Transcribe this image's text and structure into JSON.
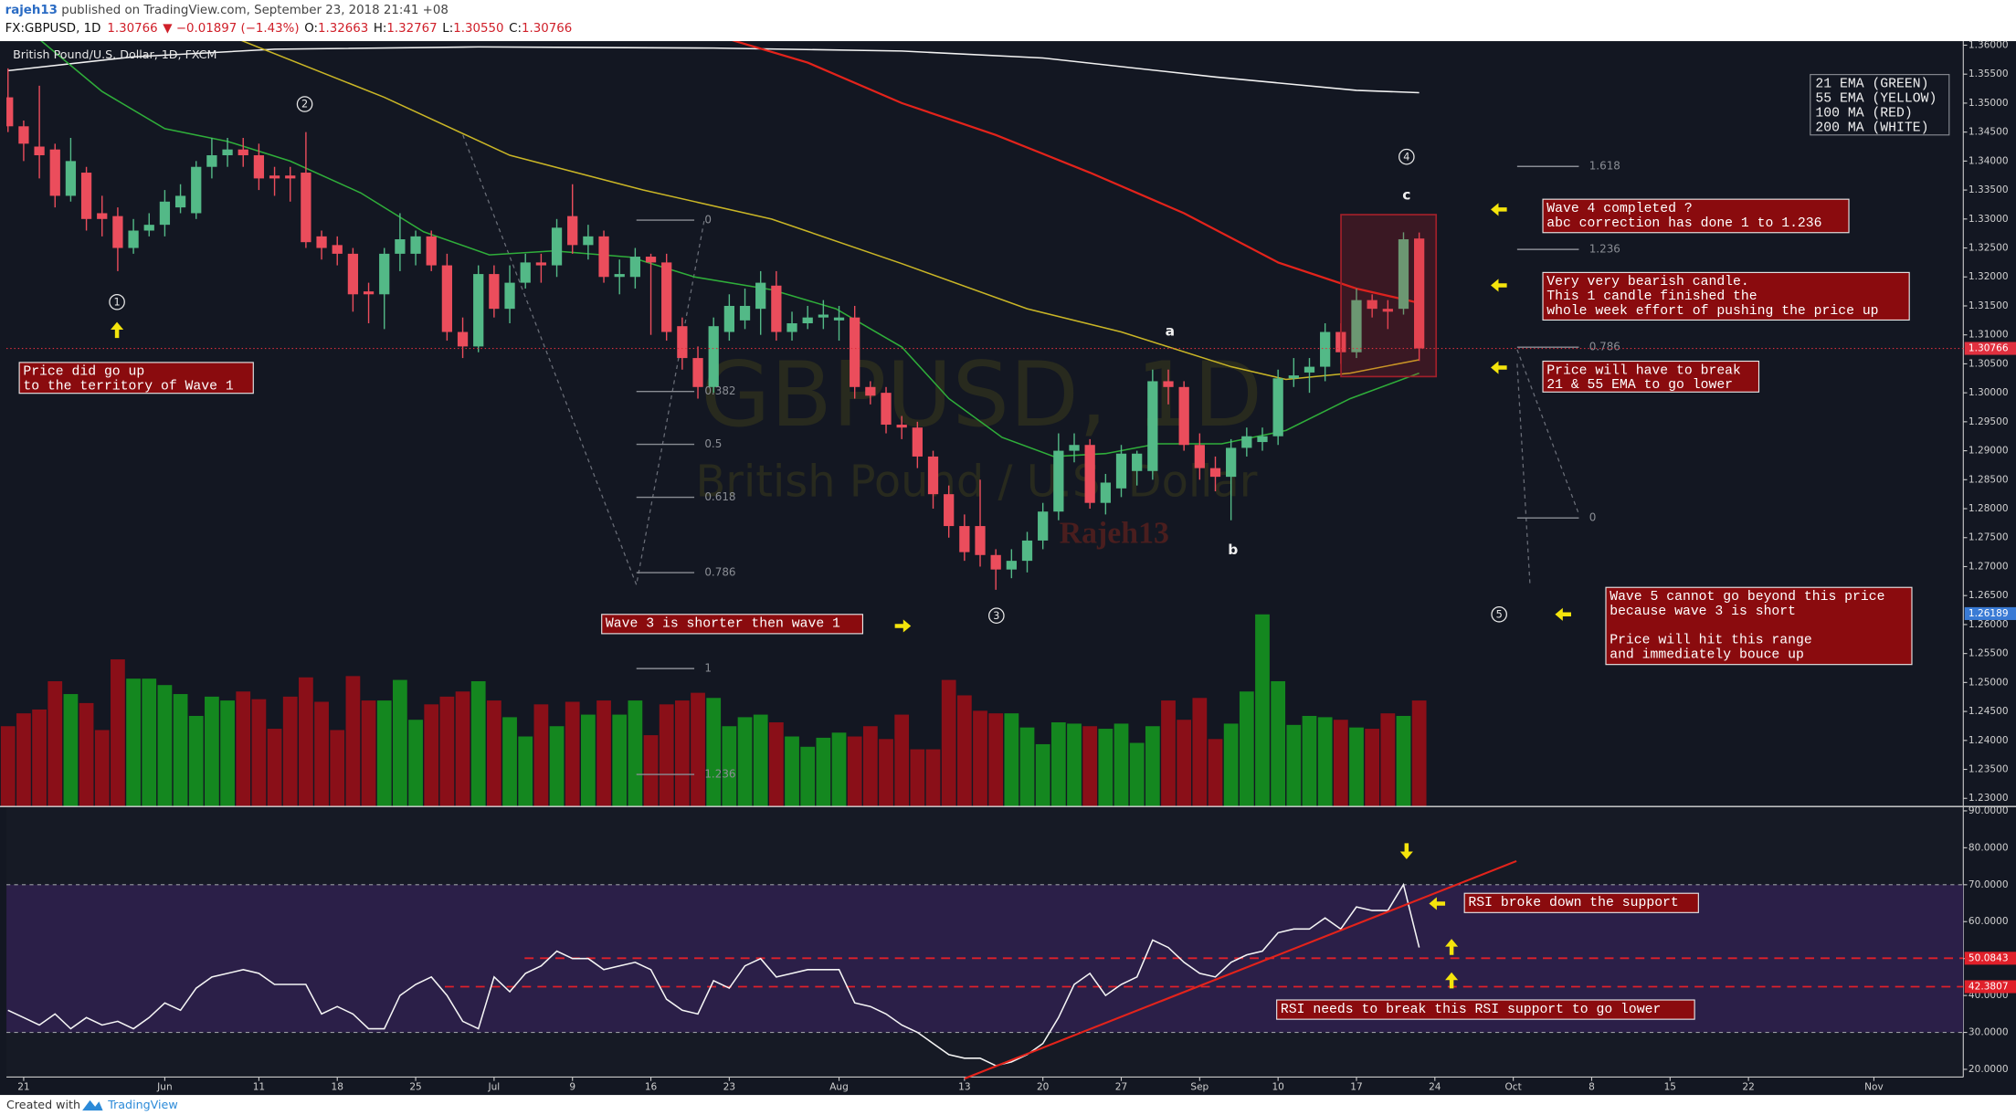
{
  "header": {
    "author": "rajeh13",
    "published": " published on TradingView.com, September 23, 2018 21:41 +08",
    "symbol": "FX:GBPUSD, 1D",
    "last": "1.30766",
    "change": "▼ −0.01897 (−1.43%)",
    "ohlc": [
      {
        "label": "O:",
        "value": "1.32663"
      },
      {
        "label": "H:",
        "value": "1.32767"
      },
      {
        "label": "L:",
        "value": "1.30550"
      },
      {
        "label": "C:",
        "value": "1.30766"
      }
    ]
  },
  "footer": {
    "created": "Created with",
    "brand": "TradingView"
  },
  "chart_data": {
    "type": "candlestick",
    "title": "British Pound/U.S. Dollar, 1D, FXCM",
    "watermark": [
      "GBPUSD, 1D",
      "British Pound / U.S. Dollar",
      "Rajeh13"
    ],
    "up_color": "#53b987",
    "down_color": "#eb4d5c",
    "xlim": [
      -0.1,
      124.7
    ],
    "xticks": [
      {
        "value": 1,
        "label": "21"
      },
      {
        "value": 10,
        "label": "Jun"
      },
      {
        "value": 16,
        "label": "11"
      },
      {
        "value": 21,
        "label": "18"
      },
      {
        "value": 26,
        "label": "25"
      },
      {
        "value": 31,
        "label": "Jul"
      },
      {
        "value": 36,
        "label": "9"
      },
      {
        "value": 41,
        "label": "16"
      },
      {
        "value": 46,
        "label": "23"
      },
      {
        "value": 53,
        "label": "Aug"
      },
      {
        "value": 61,
        "label": "13"
      },
      {
        "value": 66,
        "label": "20"
      },
      {
        "value": 71,
        "label": "27"
      },
      {
        "value": 76,
        "label": "Sep"
      },
      {
        "value": 81,
        "label": "10"
      },
      {
        "value": 86,
        "label": "17"
      },
      {
        "value": 91,
        "label": "24"
      },
      {
        "value": 96,
        "label": "Oct"
      },
      {
        "value": 101,
        "label": "8"
      },
      {
        "value": 106,
        "label": "15"
      },
      {
        "value": 111,
        "label": "22"
      },
      {
        "value": 119,
        "label": "Nov"
      }
    ],
    "ylim": [
      1.2287,
      1.3607
    ],
    "yticks": [
      {
        "value": 1.36,
        "label": "1.36000"
      },
      {
        "value": 1.355,
        "label": "1.35500"
      },
      {
        "value": 1.35,
        "label": "1.35000"
      },
      {
        "value": 1.345,
        "label": "1.34500"
      },
      {
        "value": 1.34,
        "label": "1.34000"
      },
      {
        "value": 1.335,
        "label": "1.33500"
      },
      {
        "value": 1.33,
        "label": "1.33000"
      },
      {
        "value": 1.325,
        "label": "1.32500"
      },
      {
        "value": 1.32,
        "label": "1.32000"
      },
      {
        "value": 1.315,
        "label": "1.31500"
      },
      {
        "value": 1.31,
        "label": "1.31000"
      },
      {
        "value": 1.305,
        "label": "1.30500"
      },
      {
        "value": 1.3,
        "label": "1.30000"
      },
      {
        "value": 1.295,
        "label": "1.29500"
      },
      {
        "value": 1.29,
        "label": "1.29000"
      },
      {
        "value": 1.285,
        "label": "1.28500"
      },
      {
        "value": 1.28,
        "label": "1.28000"
      },
      {
        "value": 1.275,
        "label": "1.27500"
      },
      {
        "value": 1.27,
        "label": "1.27000"
      },
      {
        "value": 1.265,
        "label": "1.26500"
      },
      {
        "value": 1.26,
        "label": "1.26000"
      },
      {
        "value": 1.255,
        "label": "1.25500"
      },
      {
        "value": 1.25,
        "label": "1.25000"
      },
      {
        "value": 1.245,
        "label": "1.24500"
      },
      {
        "value": 1.24,
        "label": "1.24000"
      },
      {
        "value": 1.235,
        "label": "1.23500"
      },
      {
        "value": 1.23,
        "label": "1.23000"
      }
    ],
    "open": [
      1.351,
      1.346,
      1.3425,
      1.342,
      1.334,
      1.338,
      1.331,
      1.3305,
      1.325,
      1.328,
      1.329,
      1.332,
      1.331,
      1.339,
      1.341,
      1.342,
      1.341,
      1.3375,
      1.3375,
      1.338,
      1.327,
      1.3255,
      1.324,
      1.3175,
      1.317,
      1.324,
      1.324,
      1.327,
      1.322,
      1.3105,
      1.308,
      1.3205,
      1.3145,
      1.319,
      1.3225,
      1.322,
      1.3305,
      1.3255,
      1.327,
      1.32,
      1.32,
      1.3235,
      1.3225,
      1.3115,
      1.306,
      1.301,
      1.3105,
      1.3125,
      1.3145,
      1.3185,
      1.3105,
      1.312,
      1.313,
      1.3125,
      1.313,
      1.301,
      1.3,
      1.2945,
      1.294,
      1.289,
      1.2825,
      1.277,
      1.277,
      1.272,
      1.2695,
      1.271,
      1.2745,
      1.2795,
      1.29,
      1.291,
      1.281,
      1.2835,
      1.2865,
      1.2865,
      1.302,
      1.301,
      1.291,
      1.287,
      1.2855,
      1.2905,
      1.2915,
      1.2925,
      1.3025,
      1.3035,
      1.3045,
      1.3105,
      1.307,
      1.316,
      1.3145,
      1.3145,
      1.32663
    ],
    "high": [
      1.356,
      1.347,
      1.353,
      1.343,
      1.344,
      1.339,
      1.334,
      1.332,
      1.33,
      1.331,
      1.335,
      1.336,
      1.34,
      1.344,
      1.344,
      1.344,
      1.343,
      1.339,
      1.339,
      1.345,
      1.328,
      1.327,
      1.325,
      1.319,
      1.325,
      1.331,
      1.328,
      1.328,
      1.324,
      1.313,
      1.322,
      1.322,
      1.322,
      1.324,
      1.324,
      1.33,
      1.336,
      1.329,
      1.328,
      1.323,
      1.325,
      1.324,
      1.324,
      1.313,
      1.308,
      1.313,
      1.317,
      1.318,
      1.321,
      1.321,
      1.314,
      1.315,
      1.316,
      1.315,
      1.315,
      1.302,
      1.301,
      1.296,
      1.295,
      1.29,
      1.284,
      1.279,
      1.285,
      1.273,
      1.273,
      1.276,
      1.281,
      1.293,
      1.293,
      1.292,
      1.286,
      1.291,
      1.29,
      1.304,
      1.304,
      1.302,
      1.293,
      1.289,
      1.292,
      1.294,
      1.294,
      1.304,
      1.306,
      1.306,
      1.312,
      1.312,
      1.318,
      1.317,
      1.316,
      1.3277,
      1.32767
    ],
    "low": [
      1.345,
      1.34,
      1.337,
      1.332,
      1.333,
      1.328,
      1.327,
      1.321,
      1.324,
      1.327,
      1.327,
      1.331,
      1.33,
      1.337,
      1.339,
      1.339,
      1.335,
      1.334,
      1.333,
      1.325,
      1.323,
      1.322,
      1.314,
      1.312,
      1.311,
      1.321,
      1.322,
      1.321,
      1.309,
      1.306,
      1.307,
      1.313,
      1.312,
      1.318,
      1.319,
      1.32,
      1.324,
      1.323,
      1.319,
      1.317,
      1.318,
      1.31,
      1.309,
      1.304,
      1.299,
      1.3,
      1.309,
      1.311,
      1.31,
      1.309,
      1.309,
      1.311,
      1.311,
      1.309,
      1.299,
      1.298,
      1.293,
      1.292,
      1.287,
      1.28,
      1.275,
      1.271,
      1.27,
      1.266,
      1.268,
      1.269,
      1.273,
      1.278,
      1.288,
      1.28,
      1.279,
      1.282,
      1.284,
      1.285,
      1.298,
      1.29,
      1.285,
      1.283,
      1.278,
      1.289,
      1.29,
      1.291,
      1.301,
      1.3,
      1.302,
      1.305,
      1.306,
      1.313,
      1.311,
      1.3135,
      1.3055
    ],
    "close": [
      1.346,
      1.343,
      1.341,
      1.334,
      1.34,
      1.33,
      1.33,
      1.325,
      1.328,
      1.329,
      1.333,
      1.334,
      1.339,
      1.341,
      1.342,
      1.341,
      1.337,
      1.337,
      1.337,
      1.326,
      1.325,
      1.324,
      1.317,
      1.317,
      1.324,
      1.3265,
      1.327,
      1.322,
      1.3105,
      1.308,
      1.3205,
      1.3145,
      1.319,
      1.3225,
      1.322,
      1.3285,
      1.3255,
      1.327,
      1.32,
      1.3205,
      1.3235,
      1.3225,
      1.3105,
      1.306,
      1.301,
      1.3115,
      1.315,
      1.315,
      1.319,
      1.3105,
      1.312,
      1.313,
      1.3135,
      1.313,
      1.301,
      1.2995,
      1.2945,
      1.294,
      1.289,
      1.2825,
      1.277,
      1.2725,
      1.272,
      1.2695,
      1.271,
      1.2745,
      1.2795,
      1.29,
      1.291,
      1.281,
      1.2845,
      1.2895,
      1.2895,
      1.302,
      1.301,
      1.291,
      1.287,
      1.2855,
      1.2905,
      1.2925,
      1.2925,
      1.3025,
      1.303,
      1.3045,
      1.3105,
      1.307,
      1.316,
      1.3145,
      1.314,
      1.3265,
      1.30766
    ],
    "moving_averages": [
      {
        "color": "#f2f2f2",
        "x": [
          0,
          8,
          17,
          30,
          45,
          57,
          66,
          77,
          86,
          90
        ],
        "values": [
          1.3556,
          1.358,
          1.3593,
          1.3597,
          1.3595,
          1.359,
          1.3578,
          1.3545,
          1.3522,
          1.3518
        ]
      },
      {
        "color": "#e3231b",
        "x": [
          46,
          51,
          57,
          63,
          69,
          75,
          81,
          86,
          90
        ],
        "values": [
          1.361,
          1.357,
          1.35,
          1.3445,
          1.338,
          1.331,
          1.3225,
          1.318,
          1.3155
        ]
      },
      {
        "color": "#c9b526",
        "x": [
          14.7,
          24,
          32,
          40.5,
          48.7,
          57,
          65,
          71,
          78,
          81.5,
          85.6,
          90
        ],
        "values": [
          1.361,
          1.351,
          1.341,
          1.335,
          1.33,
          1.3223,
          1.3145,
          1.3105,
          1.3045,
          1.3023,
          1.3034,
          1.3057
        ]
      },
      {
        "color": "#2fae3a",
        "x": [
          2,
          6,
          10,
          14,
          18,
          22.5,
          26.5,
          30.7,
          34.8,
          39.7,
          43.8,
          48.7,
          52.8,
          57,
          60,
          63.4,
          66.7,
          70,
          73.3,
          77.4,
          81.5,
          85.6,
          90
        ],
        "values": [
          1.361,
          1.352,
          1.3456,
          1.3434,
          1.34,
          1.3345,
          1.3278,
          1.3238,
          1.3245,
          1.3234,
          1.32,
          1.3178,
          1.3145,
          1.3079,
          1.299,
          1.2923,
          1.289,
          1.2895,
          1.2912,
          1.2912,
          1.2935,
          1.299,
          1.3034
        ]
      }
    ],
    "price_labels": [
      {
        "value": 1.30766,
        "color": "#e0303f",
        "dotted_line": true
      },
      {
        "value": 1.26189,
        "color": "#3a7bd5",
        "dotted_line": false
      }
    ],
    "fib_left": {
      "price_at_0": 1.3298,
      "price_at_1": 1.2524,
      "levels": [
        0,
        0.382,
        0.5,
        0.618,
        0.786,
        1,
        1.236
      ]
    },
    "fib_right": {
      "price_at_0": 1.2784,
      "price_at_1": 1.3159,
      "levels": [
        0,
        0.786,
        1.236,
        1.618
      ]
    },
    "volume": {
      "up_color": "#14871f",
      "down_color": "#8a0f18",
      "ylim": [
        0,
        160
      ],
      "values": [
        62,
        72,
        75,
        97,
        87,
        80,
        59,
        114,
        99,
        99,
        94,
        87,
        70,
        85,
        82,
        89,
        83,
        60,
        85,
        100,
        81,
        59,
        101,
        82,
        82,
        98,
        67,
        79,
        85,
        89,
        97,
        82,
        69,
        54,
        79,
        62,
        81,
        71,
        82,
        71,
        82,
        55,
        79,
        82,
        88,
        84,
        62,
        69,
        71,
        65,
        54,
        46,
        53,
        57,
        54,
        62,
        52,
        71,
        44,
        44,
        98,
        86,
        74,
        72,
        72,
        61,
        48,
        65,
        64,
        62,
        60,
        64,
        49,
        62,
        82,
        67,
        84,
        52,
        64,
        89,
        149,
        97,
        63,
        70,
        69,
        67,
        61,
        60,
        72,
        70,
        82
      ]
    },
    "rsi": {
      "color": "#f5f5f5",
      "ylim": [
        17.9,
        91.0
      ],
      "yticks": [
        {
          "value": 90,
          "label": "90.0000"
        },
        {
          "value": 80,
          "label": "80.0000"
        },
        {
          "value": 70,
          "label": "70.0000"
        },
        {
          "value": 60,
          "label": "60.0000"
        },
        {
          "value": 50,
          "label": "50.0000"
        },
        {
          "value": 40,
          "label": "40.0000"
        },
        {
          "value": 30,
          "label": "30.0000"
        },
        {
          "value": 20,
          "label": "20.0000"
        }
      ],
      "band": [
        30,
        70
      ],
      "band_color": "#2b1f48",
      "levels": [
        50.0843,
        42.3807
      ],
      "level_color": "#e0202a",
      "values": [
        36,
        34,
        32,
        35,
        31,
        34,
        32,
        33,
        31,
        34,
        38,
        36,
        42,
        45,
        46,
        47,
        46,
        43,
        43,
        43,
        35,
        37,
        35,
        31,
        31,
        40,
        43,
        45,
        40,
        33,
        31,
        45,
        41,
        46,
        48,
        52,
        50,
        50,
        47,
        48,
        49,
        47,
        39,
        36,
        35,
        44,
        42,
        48,
        50,
        45,
        46,
        47,
        47,
        47,
        38,
        37,
        35,
        32,
        30,
        27,
        24,
        23,
        23,
        21,
        22,
        24,
        27,
        34,
        43,
        46,
        40,
        43,
        45,
        55,
        53,
        49,
        46,
        45,
        49,
        51,
        52,
        57,
        58,
        58,
        61,
        58,
        64,
        63,
        63,
        70,
        53
      ],
      "trendline": {
        "color": "#e3231b",
        "x": [
          61,
          96.2
        ],
        "values": [
          17.5,
          76.4
        ]
      }
    },
    "legend": [
      "21 EMA (GREEN)",
      "55 EMA (YELLOW)",
      "100 MA (RED)",
      "200 MA (WHITE)"
    ],
    "wave_labels": [
      "1",
      "2",
      "3",
      "4",
      "5"
    ],
    "abc_labels": [
      "a",
      "b",
      "c"
    ],
    "annotations": [
      [
        [
          "Price did go up",
          "to the territory of Wave 1"
        ]
      ],
      [
        [
          "Wave 3 is shorter then wave 1"
        ]
      ],
      [
        [
          "Wave 4 completed ?",
          "abc correction has done 1 to 1.236"
        ]
      ],
      [
        [
          "Very very bearish candle.",
          "This 1 candle finished the",
          "whole week effort of pushing the price up"
        ]
      ],
      [
        [
          "Price will have to break",
          "21 & 55 EMA to go lower"
        ]
      ],
      [
        [
          "Wave 5 cannot go beyond this price",
          "because wave 3 is short"
        ],
        [
          "Price will hit this range",
          "and immediately bouce up"
        ]
      ],
      [
        [
          "RSI broke down the support"
        ]
      ],
      [
        [
          "RSI needs to break this RSI support to go lower"
        ]
      ]
    ]
  }
}
